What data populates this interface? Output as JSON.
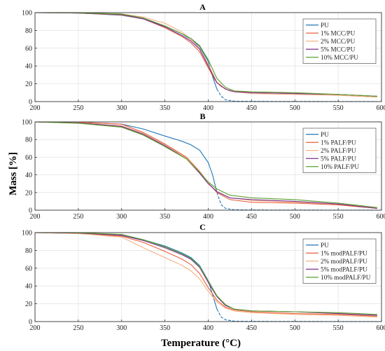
{
  "figure": {
    "ylabel": "Mass [%]",
    "xlabel": "Temperature (°C)"
  },
  "chart_data": [
    {
      "type": "line",
      "title": "A",
      "xlim": [
        200,
        600
      ],
      "ylim": [
        0,
        100
      ],
      "x_ticks": [
        200,
        250,
        300,
        350,
        400,
        450,
        500,
        550,
        600
      ],
      "y_ticks": [
        0,
        20,
        40,
        60,
        80,
        100
      ],
      "grid": true,
      "legend_position": "top-right",
      "series": [
        {
          "name": "PU",
          "color": "#1f77b4",
          "style": "dashed-tail",
          "points": [
            [
              200,
              100
            ],
            [
              250,
              99.5
            ],
            [
              300,
              97
            ],
            [
              325,
              93
            ],
            [
              350,
              85
            ],
            [
              370,
              76
            ],
            [
              380,
              70
            ],
            [
              390,
              62
            ],
            [
              400,
              45
            ],
            [
              405,
              28
            ],
            [
              410,
              14
            ],
            [
              415,
              6
            ],
            [
              420,
              2
            ],
            [
              430,
              0.5
            ],
            [
              450,
              0.2
            ],
            [
              600,
              0
            ]
          ]
        },
        {
          "name": "1% MCC/PU",
          "color": "#e8613c",
          "points": [
            [
              200,
              100
            ],
            [
              250,
              99.5
            ],
            [
              300,
              97.5
            ],
            [
              325,
              93
            ],
            [
              350,
              83
            ],
            [
              370,
              73
            ],
            [
              380,
              66
            ],
            [
              390,
              56
            ],
            [
              400,
              38
            ],
            [
              408,
              24
            ],
            [
              415,
              17
            ],
            [
              425,
              12
            ],
            [
              450,
              10
            ],
            [
              500,
              9
            ],
            [
              550,
              8
            ],
            [
              595,
              6
            ]
          ]
        },
        {
          "name": "2% MCC/PU",
          "color": "#f5b183",
          "points": [
            [
              200,
              100
            ],
            [
              250,
              99.8
            ],
            [
              300,
              98.5
            ],
            [
              325,
              95
            ],
            [
              350,
              88
            ],
            [
              370,
              78
            ],
            [
              380,
              70
            ],
            [
              390,
              60
            ],
            [
              400,
              42
            ],
            [
              410,
              22
            ],
            [
              420,
              14
            ],
            [
              430,
              11
            ],
            [
              450,
              9
            ],
            [
              500,
              8
            ],
            [
              550,
              7
            ],
            [
              595,
              5
            ]
          ]
        },
        {
          "name": "5% MCC/PU",
          "color": "#7b2d8e",
          "points": [
            [
              200,
              100
            ],
            [
              250,
              99.5
            ],
            [
              300,
              98
            ],
            [
              325,
              93
            ],
            [
              350,
              84
            ],
            [
              370,
              74
            ],
            [
              380,
              68
            ],
            [
              390,
              59
            ],
            [
              400,
              40
            ],
            [
              410,
              21
            ],
            [
              420,
              14
            ],
            [
              430,
              11
            ],
            [
              450,
              10
            ],
            [
              500,
              9
            ],
            [
              550,
              8
            ],
            [
              595,
              6
            ]
          ]
        },
        {
          "name": "10% MCC/PU",
          "color": "#5aa02c",
          "points": [
            [
              200,
              100
            ],
            [
              250,
              99.8
            ],
            [
              300,
              98.5
            ],
            [
              325,
              94
            ],
            [
              350,
              85
            ],
            [
              370,
              76
            ],
            [
              380,
              71
            ],
            [
              390,
              63
            ],
            [
              400,
              47
            ],
            [
              410,
              26
            ],
            [
              420,
              16
            ],
            [
              430,
              12
            ],
            [
              450,
              11
            ],
            [
              500,
              10
            ],
            [
              550,
              8
            ],
            [
              595,
              6
            ]
          ]
        }
      ]
    },
    {
      "type": "line",
      "title": "B",
      "xlim": [
        200,
        600
      ],
      "ylim": [
        0,
        100
      ],
      "x_ticks": [
        200,
        250,
        300,
        350,
        400,
        450,
        500,
        550,
        600
      ],
      "y_ticks": [
        0,
        20,
        40,
        60,
        80,
        100
      ],
      "grid": true,
      "legend_position": "top-right",
      "series": [
        {
          "name": "PU",
          "color": "#1f77b4",
          "style": "dashed-tail",
          "points": [
            [
              200,
              100
            ],
            [
              250,
              99.5
            ],
            [
              300,
              97.5
            ],
            [
              325,
              92
            ],
            [
              350,
              84
            ],
            [
              370,
              78
            ],
            [
              380,
              74
            ],
            [
              390,
              68
            ],
            [
              400,
              54
            ],
            [
              405,
              40
            ],
            [
              410,
              20
            ],
            [
              415,
              6
            ],
            [
              420,
              2
            ],
            [
              430,
              0.5
            ],
            [
              450,
              0.2
            ],
            [
              600,
              0
            ]
          ]
        },
        {
          "name": "1% PALF/PU",
          "color": "#e8613c",
          "points": [
            [
              200,
              100
            ],
            [
              250,
              99.5
            ],
            [
              300,
              97.5
            ],
            [
              325,
              88
            ],
            [
              350,
              75
            ],
            [
              375,
              60
            ],
            [
              390,
              44
            ],
            [
              400,
              31
            ],
            [
              410,
              20
            ],
            [
              425,
              12
            ],
            [
              450,
              9
            ],
            [
              500,
              8
            ],
            [
              550,
              6
            ],
            [
              595,
              2
            ]
          ]
        },
        {
          "name": "2% PALF/PU",
          "color": "#f5b183",
          "points": [
            [
              200,
              100
            ],
            [
              250,
              99
            ],
            [
              300,
              95.5
            ],
            [
              325,
              87
            ],
            [
              350,
              74
            ],
            [
              375,
              59
            ],
            [
              390,
              43
            ],
            [
              400,
              31
            ],
            [
              410,
              21
            ],
            [
              425,
              14
            ],
            [
              450,
              11
            ],
            [
              500,
              9
            ],
            [
              550,
              7
            ],
            [
              595,
              3
            ]
          ]
        },
        {
          "name": "5% PALF/PU",
          "color": "#7b2d8e",
          "points": [
            [
              200,
              100
            ],
            [
              250,
              98.8
            ],
            [
              300,
              95
            ],
            [
              325,
              86
            ],
            [
              350,
              73
            ],
            [
              375,
              58
            ],
            [
              390,
              42
            ],
            [
              400,
              30
            ],
            [
              410,
              21
            ],
            [
              425,
              14
            ],
            [
              450,
              12
            ],
            [
              500,
              10
            ],
            [
              550,
              7
            ],
            [
              595,
              2
            ]
          ]
        },
        {
          "name": "10% PALF/PU",
          "color": "#5aa02c",
          "points": [
            [
              200,
              100
            ],
            [
              250,
              98.5
            ],
            [
              300,
              94
            ],
            [
              325,
              85
            ],
            [
              350,
              72
            ],
            [
              375,
              58
            ],
            [
              390,
              43
            ],
            [
              400,
              32
            ],
            [
              410,
              24
            ],
            [
              425,
              17
            ],
            [
              450,
              14
            ],
            [
              500,
              12
            ],
            [
              550,
              8
            ],
            [
              595,
              3
            ]
          ]
        }
      ]
    },
    {
      "type": "line",
      "title": "C",
      "xlim": [
        200,
        600
      ],
      "ylim": [
        0,
        100
      ],
      "x_ticks": [
        200,
        250,
        300,
        350,
        400,
        450,
        500,
        550,
        600
      ],
      "y_ticks": [
        0,
        20,
        40,
        60,
        80,
        100
      ],
      "grid": true,
      "legend_position": "top-right",
      "series": [
        {
          "name": "PU",
          "color": "#1f77b4",
          "style": "dashed-tail",
          "points": [
            [
              200,
              100
            ],
            [
              250,
              99.5
            ],
            [
              300,
              97
            ],
            [
              325,
              92
            ],
            [
              350,
              85
            ],
            [
              370,
              77
            ],
            [
              380,
              72
            ],
            [
              390,
              63
            ],
            [
              400,
              46
            ],
            [
              405,
              30
            ],
            [
              410,
              14
            ],
            [
              415,
              5
            ],
            [
              420,
              2
            ],
            [
              430,
              0.5
            ],
            [
              450,
              0.2
            ],
            [
              600,
              0
            ]
          ]
        },
        {
          "name": "1% modPALF/PU",
          "color": "#e8613c",
          "points": [
            [
              200,
              100
            ],
            [
              250,
              99
            ],
            [
              300,
              96
            ],
            [
              325,
              89
            ],
            [
              350,
              79
            ],
            [
              370,
              70
            ],
            [
              380,
              64
            ],
            [
              390,
              54
            ],
            [
              400,
              38
            ],
            [
              410,
              24
            ],
            [
              420,
              16
            ],
            [
              430,
              13
            ],
            [
              450,
              11
            ],
            [
              500,
              9
            ],
            [
              550,
              8
            ],
            [
              595,
              6
            ]
          ]
        },
        {
          "name": "2% modPALF/PU",
          "color": "#f5b183",
          "points": [
            [
              200,
              100
            ],
            [
              250,
              99
            ],
            [
              300,
              95
            ],
            [
              325,
              83
            ],
            [
              350,
              72
            ],
            [
              370,
              63
            ],
            [
              380,
              57
            ],
            [
              390,
              48
            ],
            [
              400,
              34
            ],
            [
              410,
              22
            ],
            [
              420,
              15
            ],
            [
              430,
              12
            ],
            [
              450,
              10
            ],
            [
              500,
              8
            ],
            [
              550,
              7
            ],
            [
              595,
              5
            ]
          ]
        },
        {
          "name": "5% modPALF/PU",
          "color": "#7b2d8e",
          "points": [
            [
              200,
              100
            ],
            [
              250,
              99.5
            ],
            [
              300,
              97
            ],
            [
              325,
              91
            ],
            [
              350,
              83
            ],
            [
              370,
              75
            ],
            [
              380,
              70
            ],
            [
              390,
              61
            ],
            [
              400,
              44
            ],
            [
              410,
              28
            ],
            [
              420,
              18
            ],
            [
              430,
              14
            ],
            [
              450,
              12
            ],
            [
              500,
              11
            ],
            [
              550,
              9
            ],
            [
              595,
              7
            ]
          ]
        },
        {
          "name": "10% modPALF/PU",
          "color": "#5aa02c",
          "points": [
            [
              200,
              100
            ],
            [
              250,
              99.8
            ],
            [
              300,
              98
            ],
            [
              325,
              92
            ],
            [
              350,
              84
            ],
            [
              370,
              76
            ],
            [
              380,
              71
            ],
            [
              390,
              62
            ],
            [
              400,
              46
            ],
            [
              410,
              29
            ],
            [
              420,
              19
            ],
            [
              430,
              14
            ],
            [
              450,
              12
            ],
            [
              500,
              11
            ],
            [
              550,
              10
            ],
            [
              595,
              8
            ]
          ]
        }
      ]
    }
  ]
}
